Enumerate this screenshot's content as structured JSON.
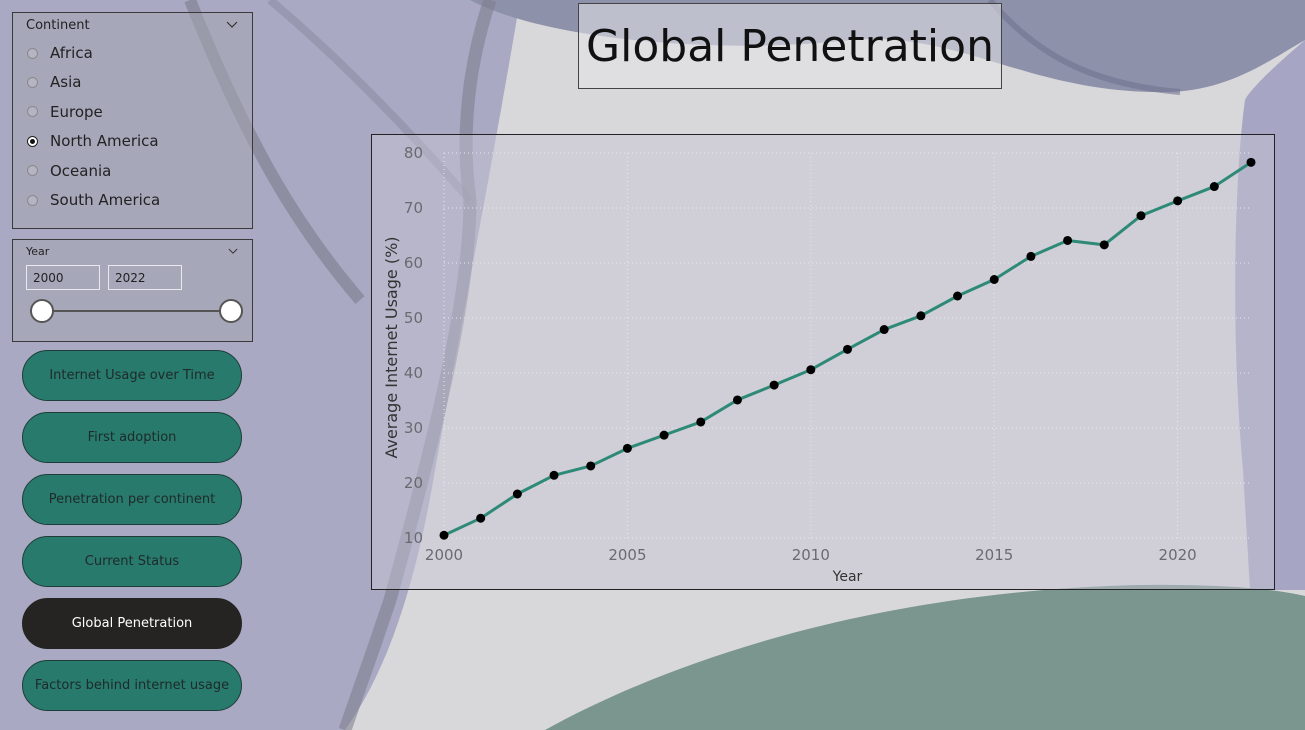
{
  "continent_slicer": {
    "title": "Continent",
    "options": [
      {
        "label": "Africa",
        "selected": false
      },
      {
        "label": "Asia",
        "selected": false
      },
      {
        "label": "Europe",
        "selected": false
      },
      {
        "label": "North America",
        "selected": true
      },
      {
        "label": "Oceania",
        "selected": false
      },
      {
        "label": "South America",
        "selected": false
      }
    ]
  },
  "year_slicer": {
    "title": "Year",
    "from": "2000",
    "to": "2022"
  },
  "nav": {
    "buttons": [
      {
        "label": "Internet Usage over Time",
        "active": false
      },
      {
        "label": "First adoption",
        "active": false
      },
      {
        "label": "Penetration per continent",
        "active": false
      },
      {
        "label": "Current Status",
        "active": false
      },
      {
        "label": "Global Penetration",
        "active": true
      },
      {
        "label": "Factors behind internet usage",
        "active": false
      }
    ]
  },
  "page_title": "Global Penetration",
  "colors": {
    "accent": "#277a6c",
    "active_button": "#252423",
    "line": "#2e8a77",
    "marker": "#000000"
  },
  "chart_data": {
    "type": "line",
    "xlabel": "Year",
    "ylabel": "Average Internet Usage (%)",
    "xlim": [
      2000,
      2022
    ],
    "ylim": [
      10,
      80
    ],
    "x_ticks": [
      "2000",
      "2005",
      "2010",
      "2015",
      "2020"
    ],
    "y_ticks": [
      "10",
      "20",
      "30",
      "40",
      "50",
      "60",
      "70",
      "80"
    ],
    "grid": true,
    "series": [
      {
        "x": [
          2000,
          2001,
          2002,
          2003,
          2004,
          2005,
          2006,
          2007,
          2008,
          2009,
          2010,
          2011,
          2012,
          2013,
          2014,
          2015,
          2016,
          2017,
          2018,
          2019,
          2020,
          2021,
          2022
        ],
        "values": [
          10.5,
          13.6,
          18.0,
          21.4,
          23.1,
          26.3,
          28.7,
          31.1,
          35.1,
          37.8,
          40.6,
          44.3,
          47.9,
          50.4,
          54.0,
          57.0,
          61.2,
          64.1,
          63.3,
          68.6,
          71.3,
          73.9,
          78.3
        ]
      }
    ]
  }
}
